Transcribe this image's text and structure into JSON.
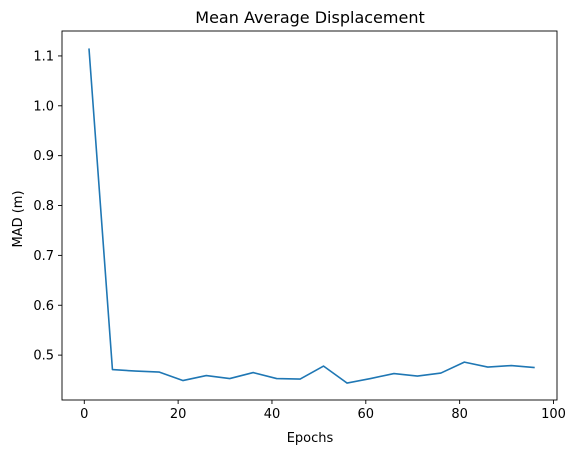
{
  "chart_data": {
    "type": "line",
    "title": "Mean Average Displacement",
    "xlabel": "Epochs",
    "ylabel": "MAD (m)",
    "xlim": [
      -4.75,
      100.75
    ],
    "ylim": [
      0.41,
      1.15
    ],
    "xticks": [
      0,
      20,
      40,
      60,
      80,
      100
    ],
    "yticks": [
      0.5,
      0.6,
      0.7,
      0.8,
      0.9,
      1.0,
      1.1
    ],
    "grid": false,
    "line_color": "#1f77b4",
    "series": [
      {
        "x": [
          1,
          6,
          11,
          16,
          21,
          26,
          31,
          36,
          41,
          46,
          51,
          56,
          61,
          66,
          71,
          76,
          81,
          86,
          91,
          96
        ],
        "values": [
          1.115,
          0.471,
          0.468,
          0.466,
          0.449,
          0.459,
          0.453,
          0.465,
          0.453,
          0.452,
          0.478,
          0.444,
          0.453,
          0.463,
          0.458,
          0.464,
          0.486,
          0.476,
          0.479,
          0.475
        ]
      }
    ]
  }
}
